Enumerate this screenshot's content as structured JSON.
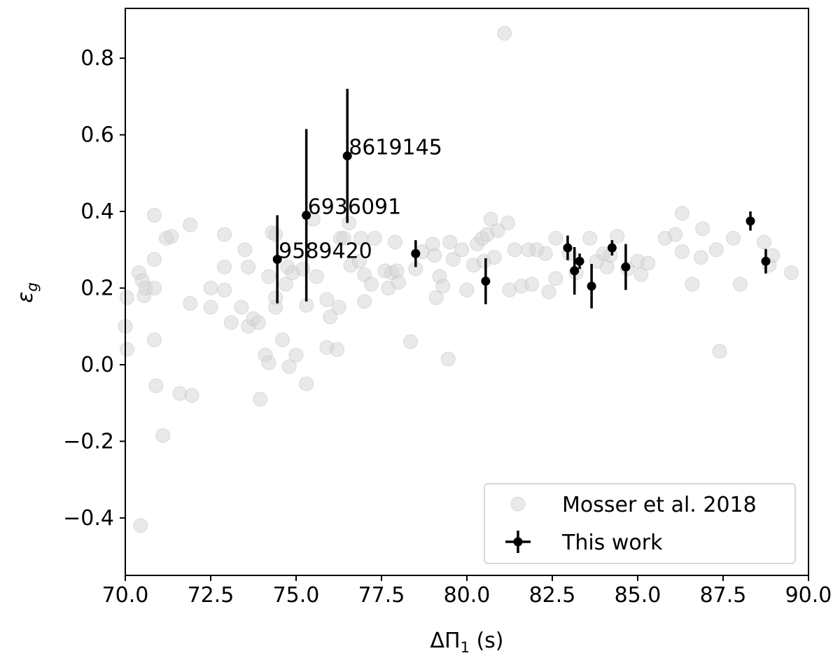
{
  "chart_data": {
    "type": "scatter",
    "xlabel_main": "ΔΠ",
    "xlabel_sub": "1",
    "xlabel_unit": " (s)",
    "ylabel_main": "ε",
    "ylabel_sub": "g",
    "xlim": [
      70.0,
      90.0
    ],
    "ylim": [
      -0.55,
      0.93
    ],
    "x_ticks": [
      70.0,
      72.5,
      75.0,
      77.5,
      80.0,
      82.5,
      85.0,
      87.5,
      90.0
    ],
    "x_tick_labels": [
      "70.0",
      "72.5",
      "75.0",
      "77.5",
      "80.0",
      "82.5",
      "85.0",
      "87.5",
      "90.0"
    ],
    "y_ticks": [
      -0.4,
      -0.2,
      0.0,
      0.2,
      0.4,
      0.6,
      0.8
    ],
    "y_tick_labels": [
      "−0.4",
      "−0.2",
      "0.0",
      "0.2",
      "0.4",
      "0.6",
      "0.8"
    ],
    "grid": false,
    "legend_position": "lower-right",
    "series": [
      {
        "name": "Mosser et al. 2018",
        "color": "#d3d3d3",
        "points": [
          [
            70.0,
            0.1
          ],
          [
            70.05,
            0.175
          ],
          [
            70.05,
            0.04
          ],
          [
            70.4,
            0.24
          ],
          [
            70.5,
            0.22
          ],
          [
            70.55,
            0.18
          ],
          [
            70.6,
            0.2
          ],
          [
            70.85,
            0.39
          ],
          [
            70.85,
            0.275
          ],
          [
            70.85,
            0.2
          ],
          [
            70.85,
            0.065
          ],
          [
            70.9,
            -0.055
          ],
          [
            70.45,
            -0.42
          ],
          [
            71.1,
            -0.185
          ],
          [
            71.2,
            0.33
          ],
          [
            71.35,
            0.335
          ],
          [
            71.6,
            -0.075
          ],
          [
            71.9,
            0.365
          ],
          [
            71.9,
            0.16
          ],
          [
            71.95,
            -0.08
          ],
          [
            72.5,
            0.15
          ],
          [
            72.5,
            0.2
          ],
          [
            72.9,
            0.34
          ],
          [
            72.9,
            0.255
          ],
          [
            72.9,
            0.195
          ],
          [
            73.1,
            0.11
          ],
          [
            73.4,
            0.15
          ],
          [
            73.5,
            0.3
          ],
          [
            73.6,
            0.255
          ],
          [
            73.6,
            0.1
          ],
          [
            73.75,
            0.12
          ],
          [
            73.9,
            0.11
          ],
          [
            73.95,
            -0.09
          ],
          [
            74.1,
            0.025
          ],
          [
            74.2,
            0.005
          ],
          [
            74.2,
            0.23
          ],
          [
            74.3,
            0.345
          ],
          [
            74.4,
            0.34
          ],
          [
            74.4,
            0.175
          ],
          [
            74.4,
            0.15
          ],
          [
            74.6,
            0.065
          ],
          [
            74.7,
            0.21
          ],
          [
            74.75,
            0.255
          ],
          [
            74.8,
            -0.005
          ],
          [
            74.9,
            0.24
          ],
          [
            75.0,
            0.025
          ],
          [
            75.2,
            0.25
          ],
          [
            75.3,
            -0.05
          ],
          [
            75.3,
            0.155
          ],
          [
            75.5,
            0.38
          ],
          [
            75.6,
            0.23
          ],
          [
            75.9,
            0.045
          ],
          [
            75.9,
            0.17
          ],
          [
            76.0,
            0.125
          ],
          [
            76.2,
            0.04
          ],
          [
            76.25,
            0.15
          ],
          [
            76.3,
            0.33
          ],
          [
            76.4,
            0.33
          ],
          [
            76.55,
            0.37
          ],
          [
            76.6,
            0.26
          ],
          [
            76.85,
            0.27
          ],
          [
            76.9,
            0.33
          ],
          [
            77.0,
            0.235
          ],
          [
            77.0,
            0.165
          ],
          [
            77.2,
            0.21
          ],
          [
            77.3,
            0.33
          ],
          [
            77.6,
            0.245
          ],
          [
            77.7,
            0.2
          ],
          [
            77.8,
            0.24
          ],
          [
            77.9,
            0.32
          ],
          [
            77.95,
            0.245
          ],
          [
            78.0,
            0.215
          ],
          [
            78.35,
            0.06
          ],
          [
            78.5,
            0.25
          ],
          [
            78.7,
            0.295
          ],
          [
            79.0,
            0.315
          ],
          [
            79.05,
            0.285
          ],
          [
            79.1,
            0.175
          ],
          [
            79.2,
            0.23
          ],
          [
            79.3,
            0.205
          ],
          [
            79.45,
            0.015
          ],
          [
            79.5,
            0.32
          ],
          [
            79.6,
            0.275
          ],
          [
            79.85,
            0.3
          ],
          [
            80.0,
            0.195
          ],
          [
            80.2,
            0.26
          ],
          [
            80.3,
            0.315
          ],
          [
            80.45,
            0.33
          ],
          [
            80.5,
            0.27
          ],
          [
            80.6,
            0.34
          ],
          [
            80.7,
            0.38
          ],
          [
            80.8,
            0.28
          ],
          [
            80.9,
            0.35
          ],
          [
            81.1,
            0.865
          ],
          [
            81.2,
            0.37
          ],
          [
            81.25,
            0.195
          ],
          [
            81.4,
            0.3
          ],
          [
            81.6,
            0.205
          ],
          [
            81.8,
            0.3
          ],
          [
            81.9,
            0.21
          ],
          [
            82.05,
            0.3
          ],
          [
            82.3,
            0.29
          ],
          [
            82.4,
            0.19
          ],
          [
            82.6,
            0.33
          ],
          [
            82.6,
            0.225
          ],
          [
            83.0,
            0.29
          ],
          [
            83.2,
            0.24
          ],
          [
            83.6,
            0.33
          ],
          [
            83.8,
            0.27
          ],
          [
            84.0,
            0.29
          ],
          [
            84.1,
            0.255
          ],
          [
            84.2,
            0.285
          ],
          [
            84.4,
            0.335
          ],
          [
            84.7,
            0.25
          ],
          [
            85.0,
            0.27
          ],
          [
            85.1,
            0.235
          ],
          [
            85.3,
            0.265
          ],
          [
            85.8,
            0.33
          ],
          [
            86.1,
            0.34
          ],
          [
            86.3,
            0.395
          ],
          [
            86.3,
            0.295
          ],
          [
            86.6,
            0.21
          ],
          [
            86.85,
            0.28
          ],
          [
            86.9,
            0.355
          ],
          [
            87.3,
            0.3
          ],
          [
            87.4,
            0.035
          ],
          [
            87.8,
            0.33
          ],
          [
            88.0,
            0.21
          ],
          [
            88.7,
            0.32
          ],
          [
            88.85,
            0.26
          ],
          [
            88.95,
            0.285
          ],
          [
            89.5,
            0.24
          ]
        ]
      },
      {
        "name": "This work",
        "color": "#000000",
        "points": [
          {
            "x": 74.45,
            "y": 0.275,
            "yerr": [
              0.115,
              0.115
            ],
            "label": "9589420"
          },
          {
            "x": 75.3,
            "y": 0.39,
            "yerr": [
              0.225,
              0.225
            ],
            "label": "6936091"
          },
          {
            "x": 76.5,
            "y": 0.545,
            "yerr": [
              0.175,
              0.175
            ],
            "label": "8619145"
          },
          {
            "x": 78.5,
            "y": 0.29,
            "yerr": [
              0.035,
              0.035
            ]
          },
          {
            "x": 80.55,
            "y": 0.218,
            "yerr": [
              0.06,
              0.06
            ]
          },
          {
            "x": 82.95,
            "y": 0.305,
            "yerr": [
              0.032,
              0.032
            ]
          },
          {
            "x": 83.15,
            "y": 0.245,
            "yerr": [
              0.062,
              0.062
            ]
          },
          {
            "x": 83.3,
            "y": 0.27,
            "yerr": [
              0.02,
              0.02
            ]
          },
          {
            "x": 83.65,
            "y": 0.205,
            "yerr": [
              0.058,
              0.058
            ]
          },
          {
            "x": 84.25,
            "y": 0.305,
            "yerr": [
              0.02,
              0.02
            ]
          },
          {
            "x": 84.65,
            "y": 0.255,
            "yerr": [
              0.06,
              0.06
            ]
          },
          {
            "x": 88.3,
            "y": 0.375,
            "yerr": [
              0.025,
              0.025
            ]
          },
          {
            "x": 88.75,
            "y": 0.27,
            "yerr": [
              0.032,
              0.032
            ]
          }
        ]
      }
    ]
  }
}
